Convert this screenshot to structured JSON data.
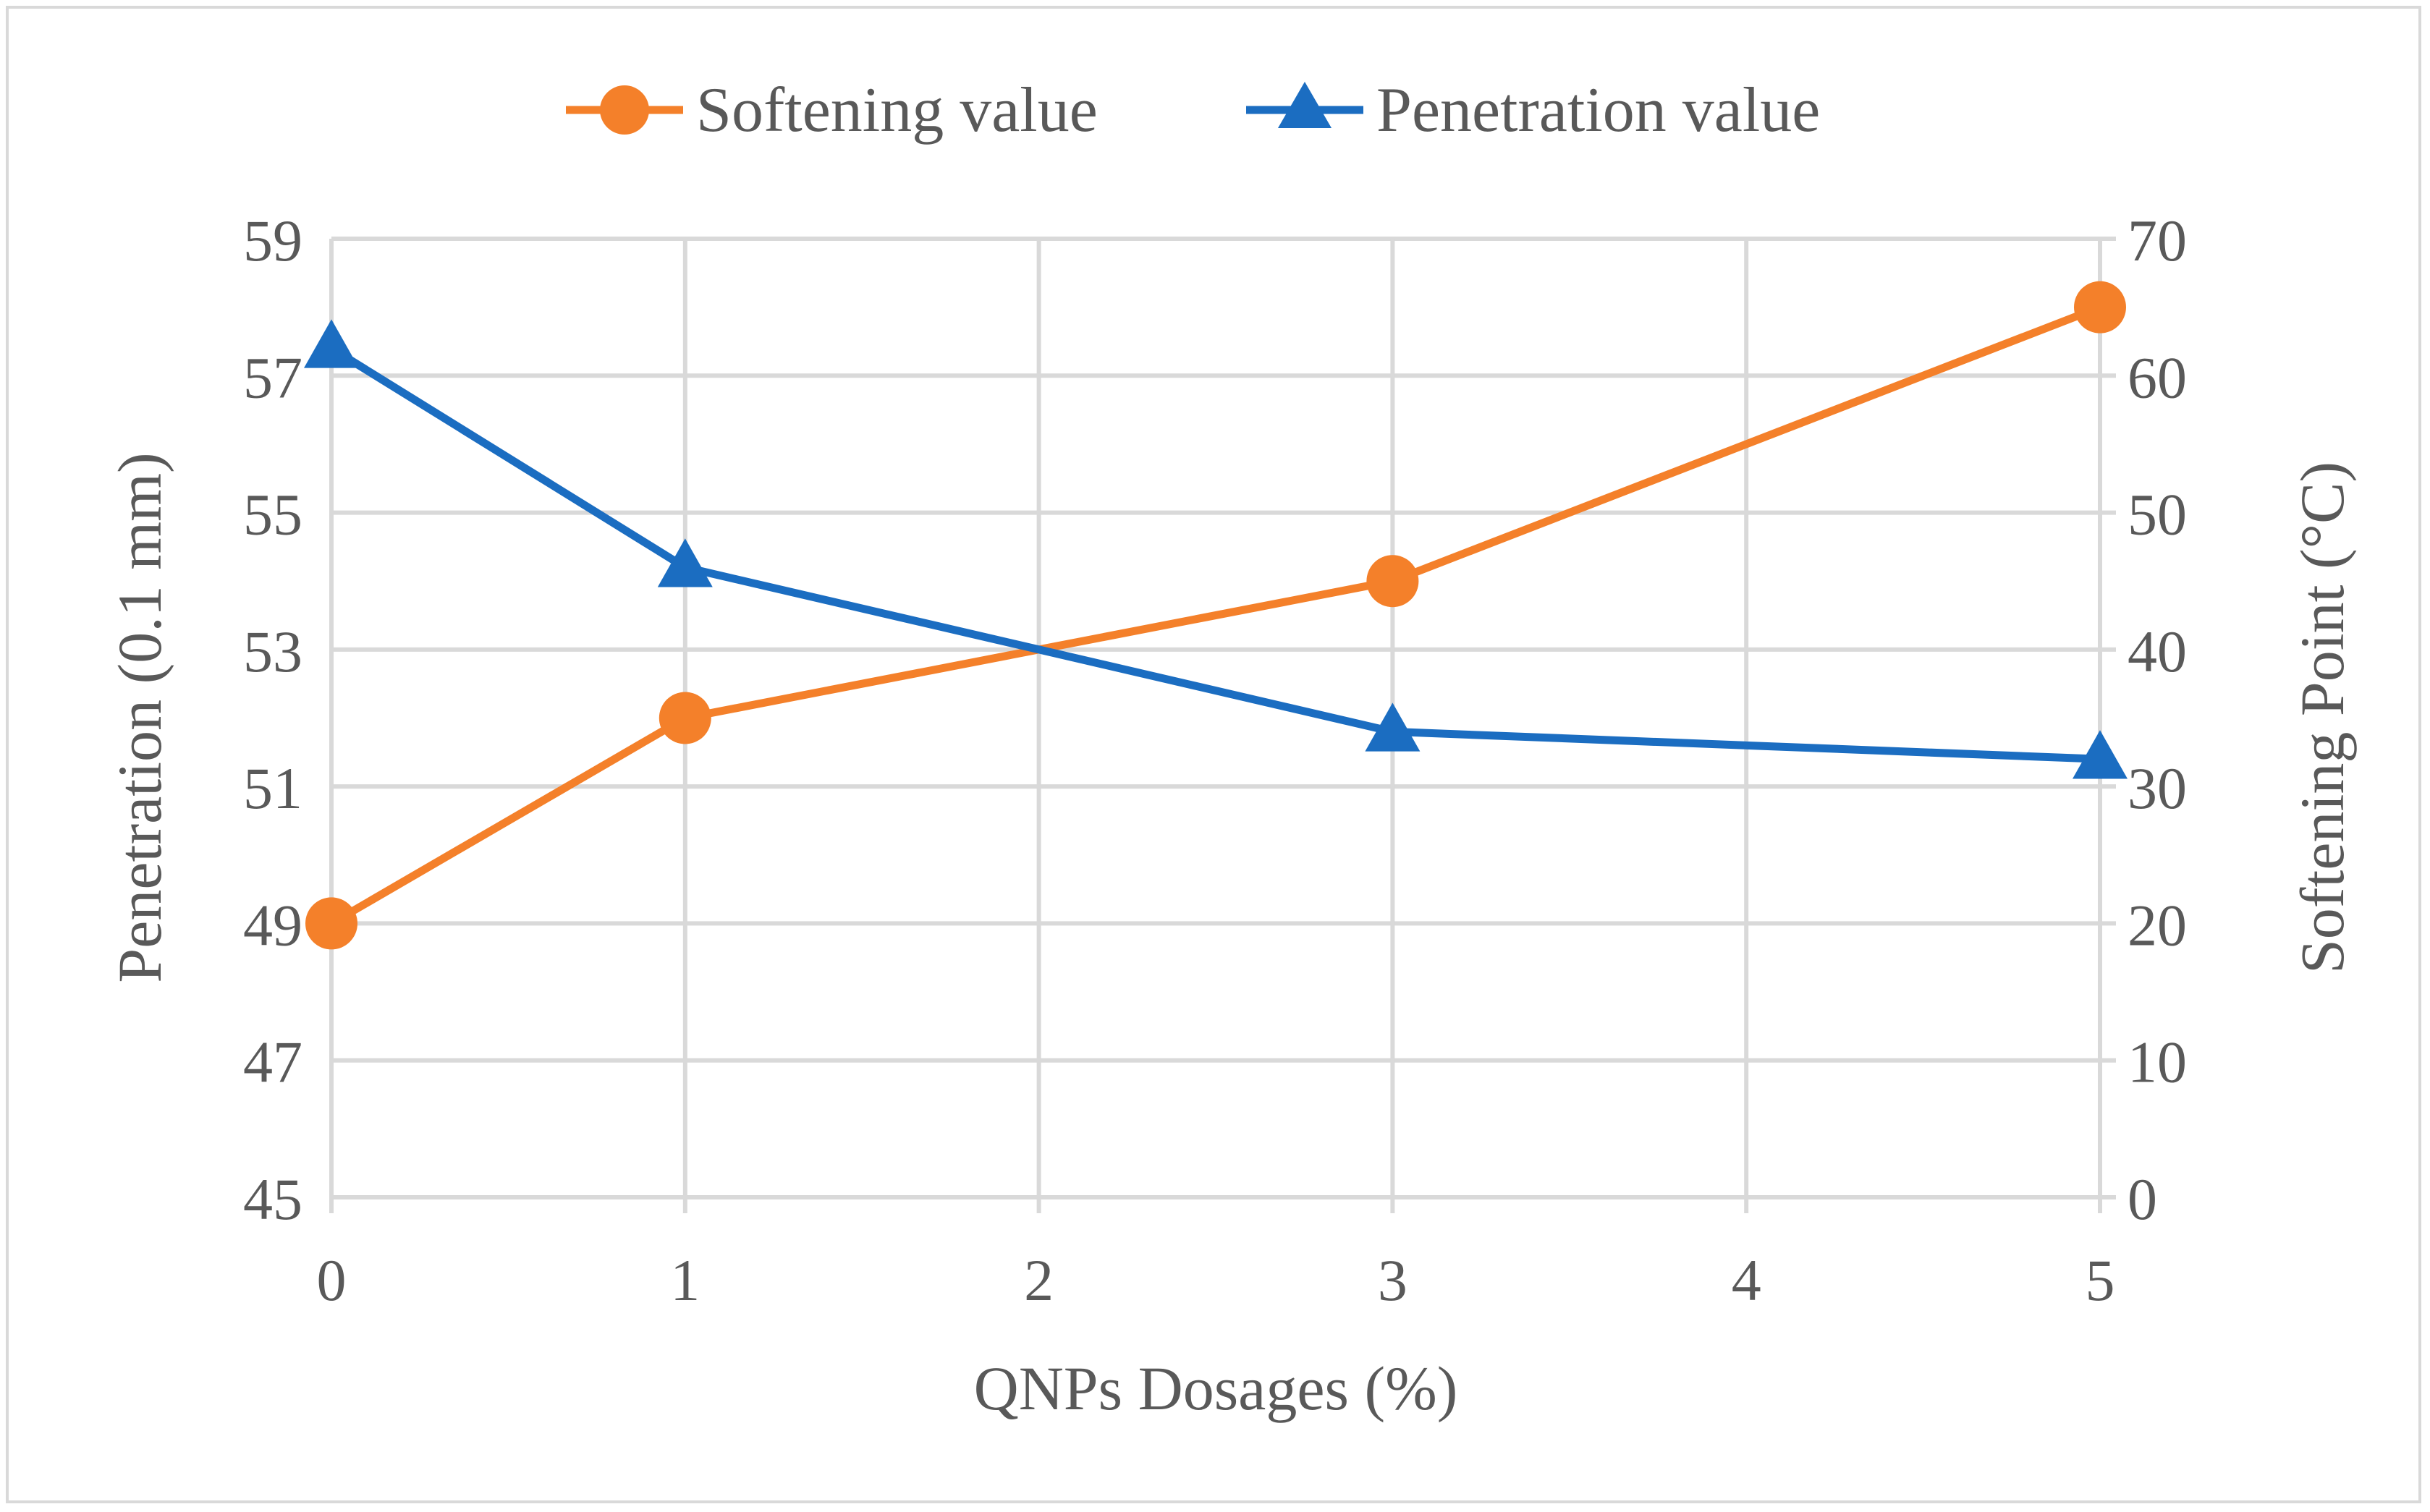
{
  "chart_data": {
    "type": "line",
    "x": [
      0,
      1,
      3,
      5
    ],
    "xlabel": "QNPs Dosages (%)",
    "xticks": [
      "0",
      "1",
      "2",
      "3",
      "4",
      "5"
    ],
    "xlim": [
      0,
      5
    ],
    "y_left_label": "Penetration (0.1 mm)",
    "y_left_ticks": [
      "45",
      "47",
      "49",
      "51",
      "53",
      "55",
      "57",
      "59"
    ],
    "y_left_lim": [
      45,
      59
    ],
    "y_right_label": "Softening Point  (°C)",
    "y_right_ticks": [
      "0",
      "10",
      "20",
      "30",
      "40",
      "50",
      "60",
      "70"
    ],
    "y_right_lim": [
      0,
      70
    ],
    "grid": true,
    "legend_position": "top-center",
    "series": [
      {
        "name": "Softening value",
        "axis": "left",
        "values": [
          49,
          52,
          54,
          58
        ],
        "color": "#F4802A",
        "marker": "circle"
      },
      {
        "name": "Penetration value",
        "axis": "right",
        "values": [
          62,
          46,
          34,
          32
        ],
        "color": "#1B6DC1",
        "marker": "triangle"
      }
    ]
  }
}
